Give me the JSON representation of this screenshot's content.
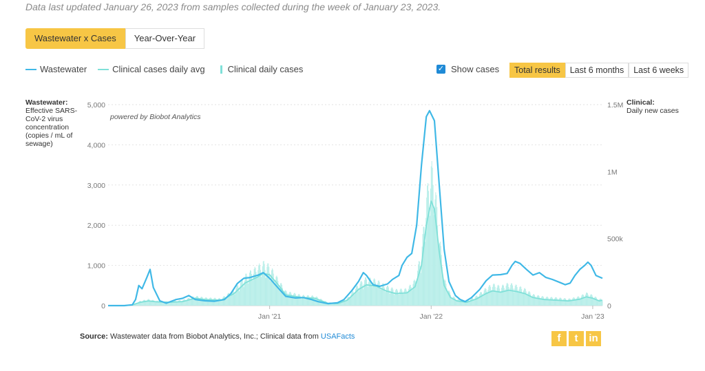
{
  "header": {
    "updated": "Data last updated January 26, 2023 from samples collected during the week of January 23, 2023."
  },
  "tabs": [
    {
      "label": "Wastewater x Cases",
      "active": true
    },
    {
      "label": "Year-Over-Year",
      "active": false
    }
  ],
  "legend": {
    "wastewater": "Wastewater",
    "clinical_avg": "Clinical cases daily avg",
    "clinical_daily": "Clinical daily cases"
  },
  "show_cases": {
    "label": "Show cases",
    "checked": true
  },
  "ranges": [
    {
      "label": "Total results",
      "active": true
    },
    {
      "label": "Last 6 months",
      "active": false
    },
    {
      "label": "Last 6 weeks",
      "active": false
    }
  ],
  "axis_titles": {
    "left_bold": "Wastewater:",
    "left_rest": "Effective SARS-CoV-2 virus concentration (copies / mL of sewage)",
    "right_bold": "Clinical:",
    "right_rest": "Daily new cases"
  },
  "powered": "powered by Biobot Analytics",
  "source": {
    "label": "Source:",
    "text": "Wastewater data from Biobot Analytics, Inc.; Clinical data from",
    "link": "USAFacts"
  },
  "social": {
    "facebook": "f",
    "twitter": "t",
    "linkedin": "in"
  },
  "colors": {
    "wastewater": "#3fb8e6",
    "clinical_avg": "#7fe0d8",
    "clinical_bars": "#b8eee9",
    "accent": "#f7c645",
    "link": "#1f8ad6"
  },
  "chart_data": {
    "type": "line",
    "x_ticks": [
      {
        "label": "Jan '21",
        "t": 2021.0
      },
      {
        "label": "Jan '22",
        "t": 2022.0
      },
      {
        "label": "Jan '23",
        "t": 2023.0
      }
    ],
    "y_left": {
      "ylim": [
        0,
        5000
      ],
      "ticks": [
        {
          "v": 0,
          "label": "0"
        },
        {
          "v": 1000,
          "label": "1,000"
        },
        {
          "v": 2000,
          "label": "2,000"
        },
        {
          "v": 3000,
          "label": "3,000"
        },
        {
          "v": 4000,
          "label": "4,000"
        },
        {
          "v": 5000,
          "label": "5,000"
        }
      ]
    },
    "y_right": {
      "ylim": [
        0,
        1500000
      ],
      "ticks": [
        {
          "v": 0,
          "label": "0"
        },
        {
          "v": 500000,
          "label": "500k"
        },
        {
          "v": 1000000,
          "label": "1M"
        },
        {
          "v": 1500000,
          "label": "1.5M"
        }
      ]
    },
    "series": [
      {
        "name": "Wastewater",
        "axis": "left",
        "points": [
          [
            2020.0,
            0
          ],
          [
            2020.1,
            0
          ],
          [
            2020.15,
            20
          ],
          [
            2020.17,
            150
          ],
          [
            2020.19,
            500
          ],
          [
            2020.21,
            420
          ],
          [
            2020.24,
            700
          ],
          [
            2020.26,
            900
          ],
          [
            2020.28,
            450
          ],
          [
            2020.32,
            120
          ],
          [
            2020.36,
            60
          ],
          [
            2020.42,
            150
          ],
          [
            2020.46,
            180
          ],
          [
            2020.5,
            250
          ],
          [
            2020.54,
            150
          ],
          [
            2020.6,
            120
          ],
          [
            2020.66,
            110
          ],
          [
            2020.72,
            150
          ],
          [
            2020.76,
            300
          ],
          [
            2020.8,
            550
          ],
          [
            2020.84,
            680
          ],
          [
            2020.88,
            700
          ],
          [
            2020.93,
            760
          ],
          [
            2020.96,
            820
          ],
          [
            2021.0,
            680
          ],
          [
            2021.05,
            450
          ],
          [
            2021.1,
            230
          ],
          [
            2021.16,
            190
          ],
          [
            2021.21,
            200
          ],
          [
            2021.26,
            150
          ],
          [
            2021.3,
            100
          ],
          [
            2021.36,
            50
          ],
          [
            2021.42,
            70
          ],
          [
            2021.46,
            150
          ],
          [
            2021.51,
            380
          ],
          [
            2021.55,
            600
          ],
          [
            2021.58,
            820
          ],
          [
            2021.6,
            750
          ],
          [
            2021.64,
            520
          ],
          [
            2021.68,
            480
          ],
          [
            2021.73,
            540
          ],
          [
            2021.76,
            650
          ],
          [
            2021.8,
            750
          ],
          [
            2021.82,
            1000
          ],
          [
            2021.85,
            1200
          ],
          [
            2021.88,
            1300
          ],
          [
            2021.91,
            2000
          ],
          [
            2021.94,
            3500
          ],
          [
            2021.97,
            4700
          ],
          [
            2021.99,
            4850
          ],
          [
            2022.02,
            4600
          ],
          [
            2022.05,
            3000
          ],
          [
            2022.08,
            1400
          ],
          [
            2022.11,
            600
          ],
          [
            2022.15,
            250
          ],
          [
            2022.18,
            150
          ],
          [
            2022.21,
            100
          ],
          [
            2022.25,
            200
          ],
          [
            2022.3,
            400
          ],
          [
            2022.34,
            620
          ],
          [
            2022.38,
            760
          ],
          [
            2022.43,
            770
          ],
          [
            2022.47,
            800
          ],
          [
            2022.5,
            1000
          ],
          [
            2022.52,
            1100
          ],
          [
            2022.55,
            1050
          ],
          [
            2022.59,
            900
          ],
          [
            2022.63,
            760
          ],
          [
            2022.67,
            820
          ],
          [
            2022.71,
            700
          ],
          [
            2022.75,
            650
          ],
          [
            2022.8,
            570
          ],
          [
            2022.83,
            520
          ],
          [
            2022.86,
            560
          ],
          [
            2022.89,
            750
          ],
          [
            2022.92,
            900
          ],
          [
            2022.95,
            1000
          ],
          [
            2022.97,
            1080
          ],
          [
            2022.99,
            1000
          ],
          [
            2023.02,
            750
          ],
          [
            2023.06,
            680
          ]
        ]
      },
      {
        "name": "Clinical cases daily avg",
        "axis": "right",
        "points": [
          [
            2020.0,
            0
          ],
          [
            2020.1,
            0
          ],
          [
            2020.15,
            5000
          ],
          [
            2020.2,
            25000
          ],
          [
            2020.25,
            35000
          ],
          [
            2020.3,
            28000
          ],
          [
            2020.38,
            25000
          ],
          [
            2020.46,
            30000
          ],
          [
            2020.54,
            55000
          ],
          [
            2020.6,
            45000
          ],
          [
            2020.7,
            40000
          ],
          [
            2020.78,
            90000
          ],
          [
            2020.85,
            170000
          ],
          [
            2020.92,
            210000
          ],
          [
            2020.96,
            240000
          ],
          [
            2021.0,
            230000
          ],
          [
            2021.05,
            160000
          ],
          [
            2021.1,
            80000
          ],
          [
            2021.2,
            60000
          ],
          [
            2021.28,
            55000
          ],
          [
            2021.36,
            18000
          ],
          [
            2021.42,
            15000
          ],
          [
            2021.48,
            40000
          ],
          [
            2021.55,
            120000
          ],
          [
            2021.6,
            155000
          ],
          [
            2021.66,
            145000
          ],
          [
            2021.72,
            110000
          ],
          [
            2021.78,
            90000
          ],
          [
            2021.85,
            95000
          ],
          [
            2021.9,
            140000
          ],
          [
            2021.94,
            300000
          ],
          [
            2021.97,
            600000
          ],
          [
            2022.0,
            780000
          ],
          [
            2022.02,
            720000
          ],
          [
            2022.05,
            400000
          ],
          [
            2022.08,
            150000
          ],
          [
            2022.12,
            60000
          ],
          [
            2022.16,
            35000
          ],
          [
            2022.22,
            25000
          ],
          [
            2022.28,
            50000
          ],
          [
            2022.34,
            90000
          ],
          [
            2022.38,
            110000
          ],
          [
            2022.43,
            100000
          ],
          [
            2022.48,
            115000
          ],
          [
            2022.53,
            105000
          ],
          [
            2022.58,
            90000
          ],
          [
            2022.63,
            60000
          ],
          [
            2022.7,
            45000
          ],
          [
            2022.78,
            40000
          ],
          [
            2022.85,
            35000
          ],
          [
            2022.92,
            48000
          ],
          [
            2022.96,
            65000
          ],
          [
            2023.0,
            55000
          ],
          [
            2023.04,
            35000
          ],
          [
            2023.06,
            40000
          ]
        ]
      },
      {
        "name": "Clinical daily cases",
        "axis": "right",
        "kind": "bars",
        "points": [
          [
            2020.0,
            0
          ],
          [
            2020.1,
            0
          ],
          [
            2020.15,
            5000
          ],
          [
            2020.2,
            30000
          ],
          [
            2020.25,
            40000
          ],
          [
            2020.3,
            30000
          ],
          [
            2020.38,
            25000
          ],
          [
            2020.46,
            35000
          ],
          [
            2020.54,
            60000
          ],
          [
            2020.6,
            50000
          ],
          [
            2020.7,
            45000
          ],
          [
            2020.78,
            100000
          ],
          [
            2020.85,
            190000
          ],
          [
            2020.92,
            240000
          ],
          [
            2020.96,
            270000
          ],
          [
            2021.0,
            250000
          ],
          [
            2021.05,
            170000
          ],
          [
            2021.1,
            90000
          ],
          [
            2021.2,
            65000
          ],
          [
            2021.28,
            60000
          ],
          [
            2021.36,
            20000
          ],
          [
            2021.42,
            18000
          ],
          [
            2021.48,
            45000
          ],
          [
            2021.55,
            135000
          ],
          [
            2021.6,
            175000
          ],
          [
            2021.66,
            160000
          ],
          [
            2021.72,
            125000
          ],
          [
            2021.78,
            100000
          ],
          [
            2021.85,
            105000
          ],
          [
            2021.9,
            160000
          ],
          [
            2021.94,
            340000
          ],
          [
            2021.97,
            680000
          ],
          [
            2022.0,
            880000
          ],
          [
            2022.02,
            800000
          ],
          [
            2022.05,
            450000
          ],
          [
            2022.08,
            170000
          ],
          [
            2022.12,
            70000
          ],
          [
            2022.16,
            40000
          ],
          [
            2022.22,
            30000
          ],
          [
            2022.28,
            60000
          ],
          [
            2022.34,
            110000
          ],
          [
            2022.38,
            135000
          ],
          [
            2022.43,
            120000
          ],
          [
            2022.48,
            140000
          ],
          [
            2022.53,
            125000
          ],
          [
            2022.58,
            105000
          ],
          [
            2022.63,
            70000
          ],
          [
            2022.7,
            55000
          ],
          [
            2022.78,
            50000
          ],
          [
            2022.85,
            42000
          ],
          [
            2022.92,
            58000
          ],
          [
            2022.96,
            80000
          ],
          [
            2023.0,
            65000
          ],
          [
            2023.04,
            40000
          ],
          [
            2023.06,
            45000
          ]
        ]
      }
    ],
    "grid": true
  }
}
